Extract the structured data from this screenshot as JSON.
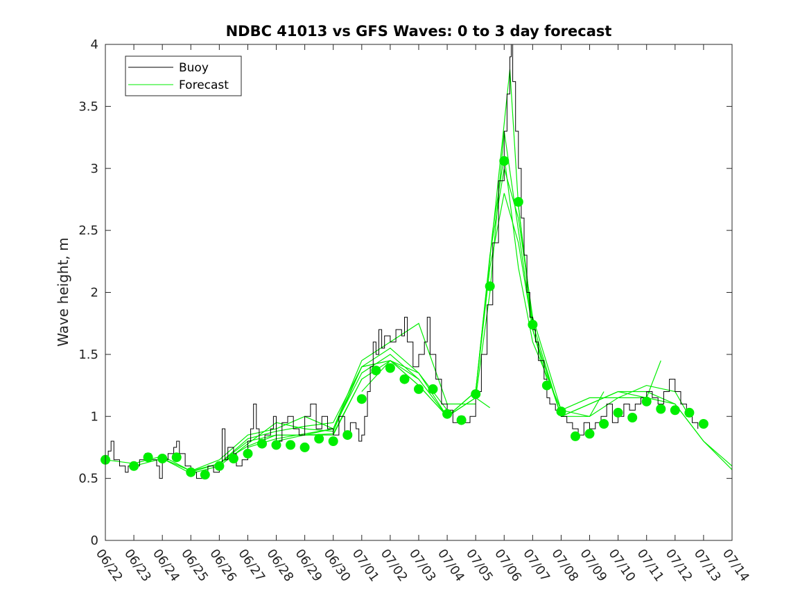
{
  "chart_data": {
    "type": "line",
    "title": "NDBC 41013 vs GFS Waves: 0 to 3 day forecast",
    "xlabel": "",
    "ylabel": "Wave height, m",
    "xlim": [
      "06/22",
      "07/14"
    ],
    "ylim": [
      0,
      4
    ],
    "x_ticks": [
      "06/22",
      "06/23",
      "06/24",
      "06/25",
      "06/26",
      "06/27",
      "06/28",
      "06/29",
      "06/30",
      "07/01",
      "07/02",
      "07/03",
      "07/04",
      "07/05",
      "07/06",
      "07/07",
      "07/08",
      "07/09",
      "07/10",
      "07/11",
      "07/12",
      "07/13",
      "07/14"
    ],
    "y_ticks": [
      0,
      0.5,
      1,
      1.5,
      2,
      2.5,
      3,
      3.5,
      4
    ],
    "grid": false,
    "legend": {
      "placement": "top-left",
      "entries": [
        "Buoy",
        "Forecast"
      ]
    },
    "colors": {
      "buoy": "#000000",
      "forecast": "#00ee00",
      "markers": "#00ee00"
    },
    "buoy": {
      "name": "Buoy",
      "points": [
        [
          0,
          0.65
        ],
        [
          0.1,
          0.72
        ],
        [
          0.2,
          0.8
        ],
        [
          0.3,
          0.65
        ],
        [
          0.5,
          0.6
        ],
        [
          0.7,
          0.55
        ],
        [
          0.8,
          0.6
        ],
        [
          1.0,
          0.6
        ],
        [
          1.2,
          0.65
        ],
        [
          1.4,
          0.7
        ],
        [
          1.6,
          0.65
        ],
        [
          1.8,
          0.6
        ],
        [
          1.9,
          0.5
        ],
        [
          2.0,
          0.65
        ],
        [
          2.2,
          0.7
        ],
        [
          2.4,
          0.75
        ],
        [
          2.5,
          0.8
        ],
        [
          2.6,
          0.7
        ],
        [
          2.8,
          0.6
        ],
        [
          3.0,
          0.55
        ],
        [
          3.2,
          0.5
        ],
        [
          3.4,
          0.55
        ],
        [
          3.6,
          0.6
        ],
        [
          3.8,
          0.55
        ],
        [
          4.0,
          0.6
        ],
        [
          4.1,
          0.9
        ],
        [
          4.2,
          0.65
        ],
        [
          4.3,
          0.75
        ],
        [
          4.5,
          0.7
        ],
        [
          4.6,
          0.6
        ],
        [
          4.8,
          0.65
        ],
        [
          5.0,
          0.8
        ],
        [
          5.1,
          0.9
        ],
        [
          5.2,
          1.1
        ],
        [
          5.3,
          0.9
        ],
        [
          5.4,
          0.8
        ],
        [
          5.6,
          0.85
        ],
        [
          5.8,
          0.9
        ],
        [
          5.9,
          1.0
        ],
        [
          6.0,
          0.8
        ],
        [
          6.2,
          0.95
        ],
        [
          6.4,
          1.0
        ],
        [
          6.6,
          0.9
        ],
        [
          6.8,
          0.85
        ],
        [
          7.0,
          1.0
        ],
        [
          7.2,
          1.1
        ],
        [
          7.4,
          0.9
        ],
        [
          7.6,
          1.0
        ],
        [
          7.8,
          0.9
        ],
        [
          8.0,
          0.85
        ],
        [
          8.2,
          1.0
        ],
        [
          8.4,
          0.85
        ],
        [
          8.6,
          0.95
        ],
        [
          8.8,
          0.9
        ],
        [
          8.9,
          0.8
        ],
        [
          9.0,
          0.85
        ],
        [
          9.1,
          1.0
        ],
        [
          9.2,
          1.2
        ],
        [
          9.3,
          1.4
        ],
        [
          9.4,
          1.6
        ],
        [
          9.5,
          1.5
        ],
        [
          9.6,
          1.7
        ],
        [
          9.7,
          1.55
        ],
        [
          9.8,
          1.65
        ],
        [
          10.0,
          1.6
        ],
        [
          10.2,
          1.7
        ],
        [
          10.4,
          1.65
        ],
        [
          10.5,
          1.8
        ],
        [
          10.6,
          1.6
        ],
        [
          10.8,
          1.4
        ],
        [
          11.0,
          1.5
        ],
        [
          11.2,
          1.6
        ],
        [
          11.3,
          1.8
        ],
        [
          11.4,
          1.5
        ],
        [
          11.6,
          1.3
        ],
        [
          11.8,
          1.1
        ],
        [
          12.0,
          1.05
        ],
        [
          12.2,
          0.95
        ],
        [
          12.4,
          1.0
        ],
        [
          12.6,
          0.95
        ],
        [
          12.8,
          1.0
        ],
        [
          13.0,
          1.2
        ],
        [
          13.2,
          1.5
        ],
        [
          13.4,
          1.9
        ],
        [
          13.6,
          2.4
        ],
        [
          13.8,
          2.9
        ],
        [
          14.0,
          3.3
        ],
        [
          14.1,
          3.6
        ],
        [
          14.2,
          3.9
        ],
        [
          14.25,
          4.0
        ],
        [
          14.3,
          3.7
        ],
        [
          14.4,
          3.3
        ],
        [
          14.5,
          3.0
        ],
        [
          14.6,
          2.6
        ],
        [
          14.7,
          2.3
        ],
        [
          14.8,
          2.0
        ],
        [
          14.9,
          1.8
        ],
        [
          15.0,
          1.7
        ],
        [
          15.1,
          1.6
        ],
        [
          15.2,
          1.45
        ],
        [
          15.4,
          1.3
        ],
        [
          15.5,
          1.15
        ],
        [
          15.6,
          1.1
        ],
        [
          15.8,
          1.05
        ],
        [
          16.0,
          1.0
        ],
        [
          16.2,
          0.95
        ],
        [
          16.4,
          0.9
        ],
        [
          16.6,
          0.85
        ],
        [
          16.8,
          0.95
        ],
        [
          17.0,
          0.9
        ],
        [
          17.2,
          0.95
        ],
        [
          17.4,
          1.0
        ],
        [
          17.6,
          1.1
        ],
        [
          17.8,
          0.95
        ],
        [
          18.0,
          1.0
        ],
        [
          18.2,
          1.1
        ],
        [
          18.4,
          1.05
        ],
        [
          18.6,
          1.1
        ],
        [
          18.8,
          1.15
        ],
        [
          19.0,
          1.2
        ],
        [
          19.2,
          1.15
        ],
        [
          19.4,
          1.1
        ],
        [
          19.6,
          1.2
        ],
        [
          19.8,
          1.3
        ],
        [
          20.0,
          1.2
        ],
        [
          20.2,
          1.1
        ],
        [
          20.4,
          1.0
        ],
        [
          20.6,
          0.95
        ],
        [
          20.8,
          0.9
        ]
      ]
    },
    "forecast_runs": [
      {
        "points": [
          [
            0,
            0.65
          ],
          [
            1,
            0.62
          ],
          [
            2,
            0.68
          ],
          [
            3,
            0.56
          ],
          [
            4,
            0.62
          ],
          [
            5,
            0.8
          ],
          [
            6,
            0.85
          ],
          [
            7,
            0.85
          ],
          [
            8,
            0.86
          ],
          [
            9,
            1.3
          ]
        ]
      },
      {
        "points": [
          [
            1,
            0.6
          ],
          [
            2,
            0.66
          ],
          [
            3,
            0.54
          ],
          [
            4,
            0.6
          ],
          [
            5,
            0.78
          ],
          [
            6,
            0.95
          ],
          [
            7,
            0.9
          ],
          [
            8,
            0.88
          ],
          [
            9,
            1.4
          ],
          [
            10,
            1.45
          ]
        ]
      },
      {
        "points": [
          [
            2,
            0.66
          ],
          [
            3,
            0.56
          ],
          [
            4,
            0.65
          ],
          [
            5,
            0.85
          ],
          [
            6,
            0.9
          ],
          [
            7,
            1.0
          ],
          [
            8,
            0.9
          ],
          [
            9,
            1.35
          ],
          [
            10,
            1.5
          ],
          [
            11,
            1.3
          ]
        ]
      },
      {
        "points": [
          [
            3,
            0.55
          ],
          [
            4,
            0.62
          ],
          [
            5,
            0.82
          ],
          [
            6,
            0.88
          ],
          [
            7,
            0.92
          ],
          [
            8,
            0.95
          ],
          [
            9,
            1.4
          ],
          [
            10,
            1.55
          ],
          [
            11,
            1.35
          ],
          [
            12,
            1.05
          ]
        ]
      },
      {
        "points": [
          [
            4,
            0.62
          ],
          [
            5,
            0.76
          ],
          [
            6,
            0.85
          ],
          [
            7,
            0.85
          ],
          [
            8,
            0.9
          ],
          [
            9,
            1.45
          ],
          [
            10,
            1.6
          ],
          [
            11,
            1.75
          ],
          [
            12,
            1.1
          ],
          [
            13,
            1.1
          ]
        ]
      },
      {
        "points": [
          [
            5,
            0.75
          ],
          [
            6,
            0.82
          ],
          [
            7,
            0.86
          ],
          [
            8,
            0.9
          ],
          [
            9,
            1.4
          ],
          [
            10,
            1.45
          ],
          [
            11,
            1.25
          ],
          [
            12,
            1.0
          ],
          [
            13,
            1.15
          ],
          [
            13.5,
            1.07
          ]
        ]
      },
      {
        "points": [
          [
            6,
            0.8
          ],
          [
            7,
            0.85
          ],
          [
            8,
            0.85
          ],
          [
            9,
            1.3
          ],
          [
            10,
            1.45
          ],
          [
            11,
            1.3
          ],
          [
            12,
            1.0
          ],
          [
            13,
            1.2
          ],
          [
            13.5,
            2.2
          ],
          [
            14,
            2.8
          ],
          [
            14.5,
            2.4
          ],
          [
            15,
            1.7
          ],
          [
            15.5,
            1.3
          ]
        ]
      },
      {
        "points": [
          [
            9,
            1.2
          ],
          [
            10,
            1.45
          ],
          [
            11,
            1.35
          ],
          [
            12,
            1.0
          ],
          [
            13,
            1.2
          ],
          [
            13.5,
            2.3
          ],
          [
            14,
            3.0
          ],
          [
            14.5,
            2.6
          ],
          [
            15,
            1.8
          ],
          [
            16,
            1.05
          ],
          [
            17,
            1.0
          ],
          [
            17.5,
            1.2
          ]
        ]
      },
      {
        "points": [
          [
            10,
            1.45
          ],
          [
            11,
            1.25
          ],
          [
            12,
            1.0
          ],
          [
            13,
            1.15
          ],
          [
            13.5,
            2.0
          ],
          [
            14,
            3.3
          ],
          [
            14.5,
            2.5
          ],
          [
            15,
            1.7
          ],
          [
            16,
            1.0
          ],
          [
            17,
            1.1
          ],
          [
            18,
            1.2
          ],
          [
            19,
            1.15
          ],
          [
            19.5,
            1.45
          ]
        ]
      },
      {
        "points": [
          [
            12,
            1.0
          ],
          [
            13,
            1.2
          ],
          [
            13.6,
            2.5
          ],
          [
            14,
            3.1
          ],
          [
            14.5,
            2.2
          ],
          [
            15,
            1.6
          ],
          [
            16,
            1.05
          ],
          [
            17,
            1.15
          ],
          [
            18,
            1.15
          ],
          [
            19,
            1.25
          ],
          [
            20,
            1.2
          ],
          [
            20.5,
            1.0
          ]
        ]
      },
      {
        "points": [
          [
            13,
            1.2
          ],
          [
            13.7,
            2.7
          ],
          [
            14.2,
            3.8
          ],
          [
            14.5,
            2.7
          ],
          [
            15,
            1.7
          ],
          [
            16,
            1.0
          ],
          [
            17,
            1.1
          ],
          [
            18,
            1.2
          ],
          [
            19,
            1.2
          ],
          [
            20,
            1.1
          ],
          [
            21,
            0.8
          ],
          [
            22,
            0.6
          ]
        ]
      },
      {
        "points": [
          [
            14.5,
            2.7
          ],
          [
            15,
            1.75
          ],
          [
            16,
            1.0
          ],
          [
            17,
            1.0
          ],
          [
            18,
            1.15
          ],
          [
            19,
            1.15
          ],
          [
            20,
            1.1
          ],
          [
            21,
            0.8
          ],
          [
            22,
            0.57
          ]
        ]
      }
    ],
    "analysis_points": {
      "x": [
        0,
        1,
        1.5,
        2,
        2.5,
        3,
        3.5,
        4,
        4.5,
        5,
        5.5,
        6,
        6.5,
        7,
        7.5,
        8,
        8.5,
        9,
        9.5,
        10,
        10.5,
        11,
        11.5,
        12,
        12.5,
        13,
        13.5,
        14,
        14.5,
        15,
        15.5,
        16,
        16.5,
        17,
        17.5,
        18,
        18.5,
        19,
        19.5,
        20,
        20.5,
        21
      ],
      "y": [
        0.65,
        0.6,
        0.67,
        0.66,
        0.67,
        0.55,
        0.53,
        0.6,
        0.66,
        0.7,
        0.78,
        0.77,
        0.77,
        0.75,
        0.82,
        0.8,
        0.85,
        1.14,
        1.37,
        1.39,
        1.3,
        1.22,
        1.22,
        1.02,
        0.97,
        1.18,
        2.05,
        3.06,
        2.73,
        1.74,
        1.25,
        1.04,
        0.84,
        0.86,
        0.94,
        1.03,
        0.99,
        1.12,
        1.06,
        1.05,
        1.03,
        0.94
      ]
    }
  }
}
